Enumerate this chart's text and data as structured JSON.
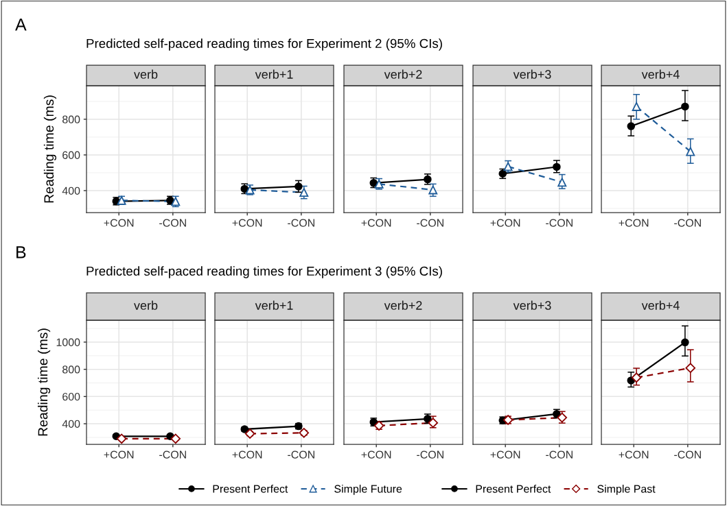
{
  "chart_data": [
    {
      "type": "line",
      "title": "verb",
      "annotations": [
        "A",
        "Predicted self-paced reading times for Experiment 2 (95% CIs)"
      ],
      "ylabel": "Reading time (ms)",
      "categories": [
        "+CON",
        "-CON"
      ],
      "ylim": [
        277,
        988
      ],
      "yticks": [
        400,
        600,
        800
      ],
      "grid": true,
      "legend": "bottom",
      "series": [
        {
          "name": "Present Perfect",
          "color": "#000000",
          "marker": "circle",
          "line_style": "solid",
          "values": [
            340,
            345
          ],
          "errors": [
            [
              320,
              362
            ],
            [
              323,
              368
            ]
          ]
        },
        {
          "name": "Simple Future",
          "color": "#1f5c99",
          "marker": "triangle",
          "line_style": "dashed",
          "values": [
            345,
            339
          ],
          "errors": [
            [
              323,
              368
            ],
            [
              310,
              368
            ]
          ]
        }
      ]
    },
    {
      "type": "line",
      "title": "verb+1",
      "categories": [
        "+CON",
        "-CON"
      ],
      "ylim": [
        277,
        988
      ],
      "yticks": [
        400,
        600,
        800
      ],
      "grid": true,
      "tick_labels": "x",
      "series": [
        {
          "color": "#000000",
          "marker": "circle",
          "line_style": "solid",
          "values": [
            410,
            423
          ],
          "errors": [
            [
              383,
              438
            ],
            [
              391,
              456
            ]
          ]
        },
        {
          "color": "#1f5c99",
          "marker": "triangle",
          "line_style": "dashed",
          "values": [
            404,
            390
          ],
          "errors": [
            [
              377,
              431
            ],
            [
              355,
              425
            ]
          ]
        }
      ]
    },
    {
      "type": "line",
      "title": "verb+2",
      "categories": [
        "+CON",
        "-CON"
      ],
      "ylim": [
        277,
        988
      ],
      "yticks": [
        400,
        600,
        800
      ],
      "grid": true,
      "tick_labels": "x",
      "series": [
        {
          "color": "#000000",
          "marker": "circle",
          "line_style": "solid",
          "values": [
            443,
            463
          ],
          "errors": [
            [
              417,
              471
            ],
            [
              435,
              493
            ]
          ]
        },
        {
          "color": "#1f5c99",
          "marker": "triangle",
          "line_style": "dashed",
          "values": [
            437,
            404
          ],
          "errors": [
            [
              408,
              467
            ],
            [
              368,
              437
            ]
          ]
        }
      ]
    },
    {
      "type": "line",
      "title": "verb+3",
      "categories": [
        "+CON",
        "-CON"
      ],
      "ylim": [
        277,
        988
      ],
      "yticks": [
        400,
        600,
        800
      ],
      "grid": true,
      "tick_labels": "x",
      "series": [
        {
          "color": "#000000",
          "marker": "circle",
          "line_style": "solid",
          "values": [
            495,
            533
          ],
          "errors": [
            [
              468,
              521
            ],
            [
              501,
              569
            ]
          ]
        },
        {
          "color": "#1f5c99",
          "marker": "triangle",
          "line_style": "dashed",
          "values": [
            535,
            447
          ],
          "errors": [
            [
              504,
              567
            ],
            [
              411,
              490
            ]
          ]
        }
      ]
    },
    {
      "type": "line",
      "title": "verb+4",
      "categories": [
        "+CON",
        "-CON"
      ],
      "ylim": [
        277,
        988
      ],
      "yticks": [
        400,
        600,
        800
      ],
      "grid": true,
      "tick_labels": "x",
      "series": [
        {
          "color": "#000000",
          "marker": "circle",
          "line_style": "solid",
          "values": [
            761,
            871
          ],
          "errors": [
            [
              707,
              818
            ],
            [
              792,
              961
            ]
          ]
        },
        {
          "color": "#1f5c99",
          "marker": "triangle",
          "line_style": "dashed",
          "values": [
            871,
            619
          ],
          "errors": [
            [
              800,
              939
            ],
            [
              553,
              690
            ]
          ]
        }
      ]
    },
    {
      "type": "line",
      "title": "verb",
      "annotations": [
        "B",
        "Predicted self-paced reading times for Experiment 3 (95% CIs)"
      ],
      "ylabel": "Reading time (ms)",
      "categories": [
        "+CON",
        "-CON"
      ],
      "ylim": [
        249,
        1161
      ],
      "yticks": [
        400,
        600,
        800,
        1000
      ],
      "grid": true,
      "legend": "bottom",
      "series": [
        {
          "name": "Present Perfect",
          "color": "#000000",
          "marker": "circle",
          "line_style": "solid",
          "values": [
            308,
            308
          ],
          "errors": [
            [
              298,
              318
            ],
            [
              298,
              318
            ]
          ]
        },
        {
          "name": "Simple Past",
          "color": "#8b0000",
          "marker": "diamond",
          "line_style": "dashed",
          "values": [
            290,
            290
          ],
          "errors": [
            [
              280,
              300
            ],
            [
              280,
              300
            ]
          ]
        }
      ]
    },
    {
      "type": "line",
      "title": "verb+1",
      "categories": [
        "+CON",
        "-CON"
      ],
      "ylim": [
        249,
        1161
      ],
      "yticks": [
        400,
        600,
        800,
        1000
      ],
      "grid": true,
      "tick_labels": "x",
      "series": [
        {
          "color": "#000000",
          "marker": "circle",
          "line_style": "solid",
          "values": [
            360,
            382
          ],
          "errors": [
            [
              345,
              375
            ],
            [
              362,
              402
            ]
          ]
        },
        {
          "color": "#8b0000",
          "marker": "diamond",
          "line_style": "dashed",
          "values": [
            327,
            333
          ],
          "errors": [
            [
              312,
              342
            ],
            [
              316,
              350
            ]
          ]
        }
      ]
    },
    {
      "type": "line",
      "title": "verb+2",
      "categories": [
        "+CON",
        "-CON"
      ],
      "ylim": [
        249,
        1161
      ],
      "yticks": [
        400,
        600,
        800,
        1000
      ],
      "grid": true,
      "tick_labels": "x",
      "series": [
        {
          "color": "#000000",
          "marker": "circle",
          "line_style": "solid",
          "values": [
            412,
            436
          ],
          "errors": [
            [
              384,
              441
            ],
            [
              403,
              471
            ]
          ]
        },
        {
          "color": "#8b0000",
          "marker": "diamond",
          "line_style": "dashed",
          "values": [
            386,
            407
          ],
          "errors": [
            [
              359,
              412
            ],
            [
              371,
              455
            ]
          ]
        }
      ]
    },
    {
      "type": "line",
      "title": "verb+3",
      "categories": [
        "+CON",
        "-CON"
      ],
      "ylim": [
        249,
        1161
      ],
      "yticks": [
        400,
        600,
        800,
        1000
      ],
      "grid": true,
      "tick_labels": "x",
      "series": [
        {
          "color": "#000000",
          "marker": "circle",
          "line_style": "solid",
          "values": [
            424,
            472
          ],
          "errors": [
            [
              400,
              450
            ],
            [
              443,
              505
            ]
          ]
        },
        {
          "color": "#8b0000",
          "marker": "diamond",
          "line_style": "dashed",
          "values": [
            428,
            445
          ],
          "errors": [
            [
              401,
              455
            ],
            [
              405,
              490
            ]
          ]
        }
      ]
    },
    {
      "type": "line",
      "title": "verb+4",
      "categories": [
        "+CON",
        "-CON"
      ],
      "ylim": [
        249,
        1161
      ],
      "yticks": [
        400,
        600,
        800,
        1000
      ],
      "grid": true,
      "tick_labels": "x",
      "series": [
        {
          "color": "#000000",
          "marker": "circle",
          "line_style": "solid",
          "values": [
            718,
            998
          ],
          "errors": [
            [
              670,
              779
            ],
            [
              898,
              1119
            ]
          ]
        },
        {
          "color": "#8b0000",
          "marker": "diamond",
          "line_style": "dashed",
          "values": [
            739,
            810
          ],
          "errors": [
            [
              684,
              808
            ],
            [
              708,
              944
            ]
          ]
        }
      ]
    }
  ]
}
